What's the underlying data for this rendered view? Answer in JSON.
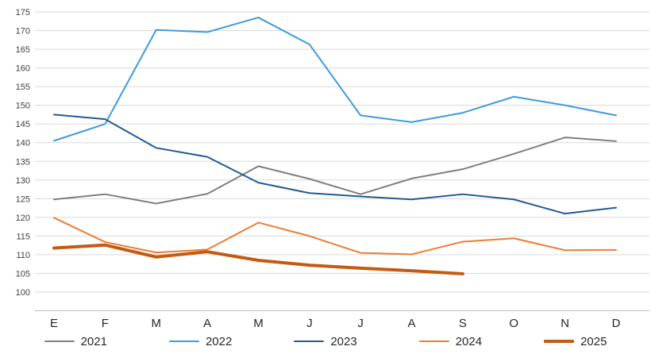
{
  "chart_data": {
    "type": "line",
    "title": "",
    "xlabel": "",
    "ylabel": "",
    "x": [
      "E",
      "F",
      "M",
      "A",
      "M",
      "J",
      "J",
      "A",
      "S",
      "O",
      "N",
      "D"
    ],
    "series": [
      {
        "name": "2021",
        "color": "#7F7F7F",
        "width": 2,
        "values": [
          124.8,
          126.2,
          123.7,
          126.3,
          133.7,
          130.3,
          126.2,
          130.4,
          132.9,
          137.0,
          141.4,
          140.4
        ]
      },
      {
        "name": "2022",
        "color": "#3E9BDC",
        "width": 2,
        "values": [
          140.5,
          145.0,
          170.2,
          169.6,
          173.5,
          166.3,
          147.3,
          145.5,
          148.0,
          152.3,
          150.0,
          147.3
        ]
      },
      {
        "name": "2023",
        "color": "#235A91",
        "width": 2,
        "values": [
          147.5,
          146.3,
          138.6,
          136.2,
          129.3,
          126.5,
          125.6,
          124.8,
          126.2,
          124.8,
          121.0,
          122.6
        ]
      },
      {
        "name": "2024",
        "color": "#ED7D31",
        "width": 2,
        "values": [
          119.9,
          113.4,
          110.6,
          111.4,
          118.6,
          115.0,
          110.5,
          110.1,
          113.5,
          114.4,
          111.2,
          111.3
        ]
      },
      {
        "name": "2025",
        "color": "#C55A11",
        "width": 4,
        "values": [
          111.8,
          112.6,
          109.4,
          110.8,
          108.5,
          107.2,
          106.4,
          105.7,
          104.9
        ]
      }
    ],
    "yticks": [
      100,
      105,
      110,
      115,
      120,
      125,
      130,
      135,
      140,
      145,
      150,
      155,
      160,
      165,
      170,
      175
    ],
    "ylim": [
      95,
      175
    ],
    "grid": true,
    "gridline_color": "#D9D9D9",
    "axis_line_color": "#BFBFBF",
    "tick_label_color": "#404040",
    "month_label_color": "#262626",
    "legend_position": "bottom"
  }
}
